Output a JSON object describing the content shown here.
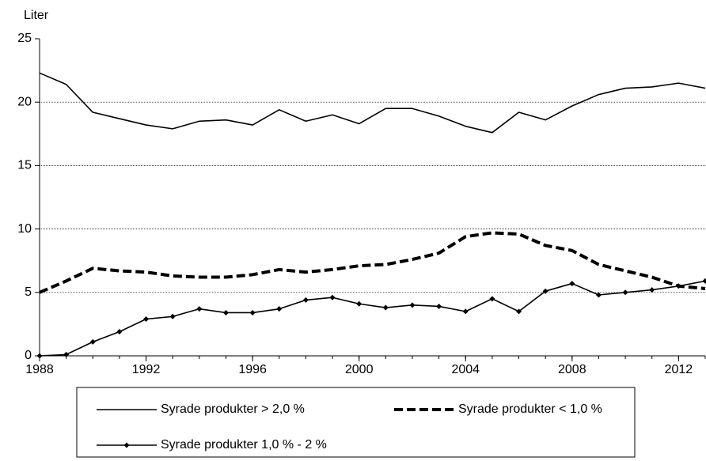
{
  "chart_data": {
    "type": "line",
    "y_label": "Liter",
    "x": [
      1988,
      1989,
      1990,
      1991,
      1992,
      1993,
      1994,
      1995,
      1996,
      1997,
      1998,
      1999,
      2000,
      2001,
      2002,
      2003,
      2004,
      2005,
      2006,
      2007,
      2008,
      2009,
      2010,
      2011,
      2012,
      2013
    ],
    "xlim": [
      1988,
      2013
    ],
    "xticks": [
      1988,
      1992,
      1996,
      2000,
      2004,
      2008,
      2012
    ],
    "ylim": [
      0,
      25
    ],
    "yticks": [
      0,
      5,
      10,
      15,
      20,
      25
    ],
    "grid": true,
    "series": [
      {
        "name": "Syrade produkter > 2,0 %",
        "color": "#000000",
        "dash": false,
        "marker": null,
        "values": [
          22.3,
          21.4,
          19.2,
          18.7,
          18.2,
          17.9,
          18.5,
          18.6,
          18.2,
          19.4,
          18.5,
          19.0,
          18.3,
          19.5,
          19.5,
          18.9,
          18.1,
          17.6,
          19.2,
          18.6,
          19.7,
          20.6,
          21.1,
          21.2,
          21.5,
          21.1
        ]
      },
      {
        "name": "Syrade produkter < 1,0 %",
        "color": "#000000",
        "dash": true,
        "marker": null,
        "values": [
          5.0,
          5.9,
          6.9,
          6.7,
          6.6,
          6.3,
          6.2,
          6.2,
          6.4,
          6.8,
          6.6,
          6.8,
          7.1,
          7.2,
          7.6,
          8.1,
          9.4,
          9.7,
          9.6,
          8.7,
          8.3,
          7.2,
          6.7,
          6.2,
          5.5,
          5.3
        ]
      },
      {
        "name": "Syrade produkter 1,0 % - 2 %",
        "color": "#000000",
        "dash": false,
        "marker": "diamond",
        "values": [
          0,
          0.1,
          1.1,
          1.9,
          2.9,
          3.1,
          3.7,
          3.4,
          3.4,
          3.7,
          4.4,
          4.6,
          4.1,
          3.8,
          4.0,
          3.9,
          3.5,
          4.5,
          3.5,
          5.1,
          5.7,
          4.8,
          5.0,
          5.2,
          5.5,
          5.9
        ]
      }
    ]
  }
}
